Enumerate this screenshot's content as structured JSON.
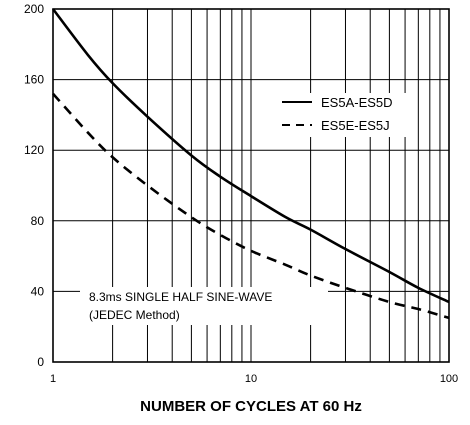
{
  "chart_data": {
    "type": "line",
    "title": "",
    "xlabel": "NUMBER OF CYCLES AT 60 Hz",
    "ylabel": "",
    "x_scale": "log",
    "xlim": [
      1,
      100
    ],
    "ylim": [
      0,
      200
    ],
    "x_ticks": [
      1,
      10,
      100
    ],
    "x_tick_labels": [
      "1",
      "10",
      "100"
    ],
    "y_ticks": [
      0,
      40,
      80,
      120,
      160,
      200
    ],
    "y_tick_labels": [
      "0",
      "40",
      "80",
      "120",
      "160",
      "200"
    ],
    "grid": {
      "vertical_log_decades": true,
      "horizontal_major": true
    },
    "legend_position": "top-right",
    "series": [
      {
        "name": "ES5A-ES5D",
        "style": "solid",
        "x": [
          1,
          1.5,
          2,
          3,
          5,
          7,
          10,
          15,
          20,
          30,
          50,
          70,
          100
        ],
        "y": [
          200,
          174,
          158,
          139,
          117,
          105,
          94,
          82,
          75,
          64,
          51,
          42,
          34
        ]
      },
      {
        "name": "ES5E-ES5J",
        "style": "dashed",
        "x": [
          1,
          1.5,
          2,
          3,
          5,
          7,
          10,
          15,
          20,
          30,
          50,
          70,
          100
        ],
        "y": [
          152,
          130,
          116,
          100,
          82,
          72,
          63,
          55,
          49,
          42,
          34,
          30,
          25
        ]
      }
    ],
    "annotation": {
      "lines": [
        "8.3ms SINGLE HALF SINE-WAVE",
        "(JEDEC Method)"
      ]
    }
  }
}
